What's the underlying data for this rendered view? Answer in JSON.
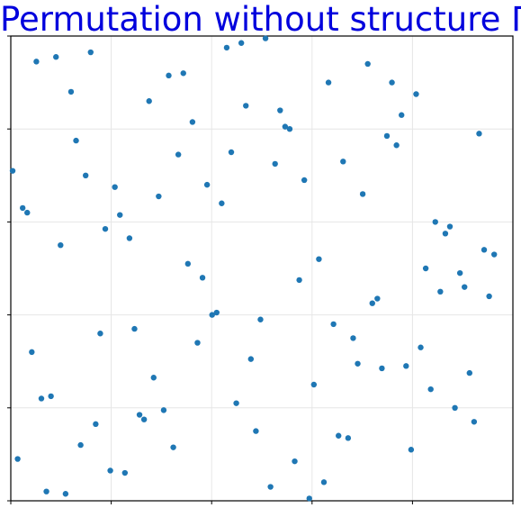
{
  "chart_data": {
    "type": "scatter",
    "title": "Permutation without structure Π",
    "xlabel": "",
    "ylabel": "",
    "xlim": [
      0,
      110
    ],
    "ylim": [
      0,
      100
    ],
    "grid": true,
    "point_color": "#1f77b4",
    "title_color": "#0000dd",
    "points": [
      [
        0.4,
        71.0
      ],
      [
        1.5,
        9.0
      ],
      [
        2.6,
        63.0
      ],
      [
        3.6,
        62.0
      ],
      [
        4.6,
        32.0
      ],
      [
        5.6,
        94.5
      ],
      [
        6.7,
        22.0
      ],
      [
        7.8,
        2.0
      ],
      [
        8.8,
        22.5
      ],
      [
        9.9,
        95.5
      ],
      [
        10.9,
        55.0
      ],
      [
        12.0,
        1.5
      ],
      [
        13.2,
        88.0
      ],
      [
        14.3,
        77.5
      ],
      [
        15.3,
        12.0
      ],
      [
        16.4,
        70.0
      ],
      [
        17.5,
        96.5
      ],
      [
        18.6,
        16.5
      ],
      [
        19.6,
        36.0
      ],
      [
        20.7,
        58.5
      ],
      [
        21.8,
        6.5
      ],
      [
        22.8,
        67.5
      ],
      [
        23.9,
        61.5
      ],
      [
        25.0,
        6.0
      ],
      [
        26.0,
        56.5
      ],
      [
        27.1,
        37.0
      ],
      [
        28.2,
        18.5
      ],
      [
        29.2,
        17.5
      ],
      [
        30.3,
        86.0
      ],
      [
        31.3,
        26.5
      ],
      [
        32.4,
        65.5
      ],
      [
        33.5,
        19.5
      ],
      [
        34.6,
        91.5
      ],
      [
        35.6,
        11.5
      ],
      [
        36.7,
        74.5
      ],
      [
        37.8,
        92.0
      ],
      [
        38.8,
        51.0
      ],
      [
        39.8,
        81.5
      ],
      [
        40.9,
        34.0
      ],
      [
        42.0,
        48.0
      ],
      [
        43.0,
        68.0
      ],
      [
        44.1,
        40.0
      ],
      [
        45.1,
        40.5
      ],
      [
        46.2,
        64.0
      ],
      [
        47.3,
        97.5
      ],
      [
        48.3,
        75.0
      ],
      [
        49.4,
        21.0
      ],
      [
        50.5,
        98.5
      ],
      [
        51.5,
        85.0
      ],
      [
        52.6,
        30.5
      ],
      [
        53.7,
        15.0
      ],
      [
        54.7,
        39.0
      ],
      [
        55.8,
        99.5
      ],
      [
        56.9,
        3.0
      ],
      [
        57.9,
        72.5
      ],
      [
        59.0,
        84.0
      ],
      [
        60.1,
        80.5
      ],
      [
        61.1,
        80.0
      ],
      [
        62.2,
        8.5
      ],
      [
        63.2,
        47.5
      ],
      [
        64.3,
        69.0
      ],
      [
        65.4,
        0.5
      ],
      [
        66.4,
        25.0
      ],
      [
        67.5,
        52.0
      ],
      [
        68.6,
        4.0
      ],
      [
        69.6,
        90.0
      ],
      [
        70.7,
        38.0
      ],
      [
        71.8,
        14.0
      ],
      [
        72.8,
        73.0
      ],
      [
        73.9,
        13.5
      ],
      [
        75.0,
        35.0
      ],
      [
        76.0,
        29.5
      ],
      [
        77.1,
        66.0
      ],
      [
        78.2,
        94.0
      ],
      [
        79.2,
        42.5
      ],
      [
        80.3,
        43.5
      ],
      [
        81.3,
        28.5
      ],
      [
        82.4,
        78.5
      ],
      [
        83.5,
        90.0
      ],
      [
        84.5,
        76.5
      ],
      [
        85.6,
        83.0
      ],
      [
        86.6,
        29.0
      ],
      [
        87.7,
        11.0
      ],
      [
        88.8,
        87.5
      ],
      [
        89.8,
        33.0
      ],
      [
        90.9,
        50.0
      ],
      [
        92.0,
        24.0
      ],
      [
        93.0,
        60.0
      ],
      [
        94.1,
        45.0
      ],
      [
        95.2,
        57.5
      ],
      [
        96.2,
        59.0
      ],
      [
        97.3,
        20.0
      ],
      [
        98.4,
        49.0
      ],
      [
        99.4,
        46.0
      ],
      [
        100.5,
        27.5
      ],
      [
        101.5,
        17.0
      ],
      [
        102.6,
        79.0
      ],
      [
        103.7,
        54.0
      ],
      [
        104.8,
        44.0
      ],
      [
        105.9,
        53.0
      ]
    ]
  }
}
